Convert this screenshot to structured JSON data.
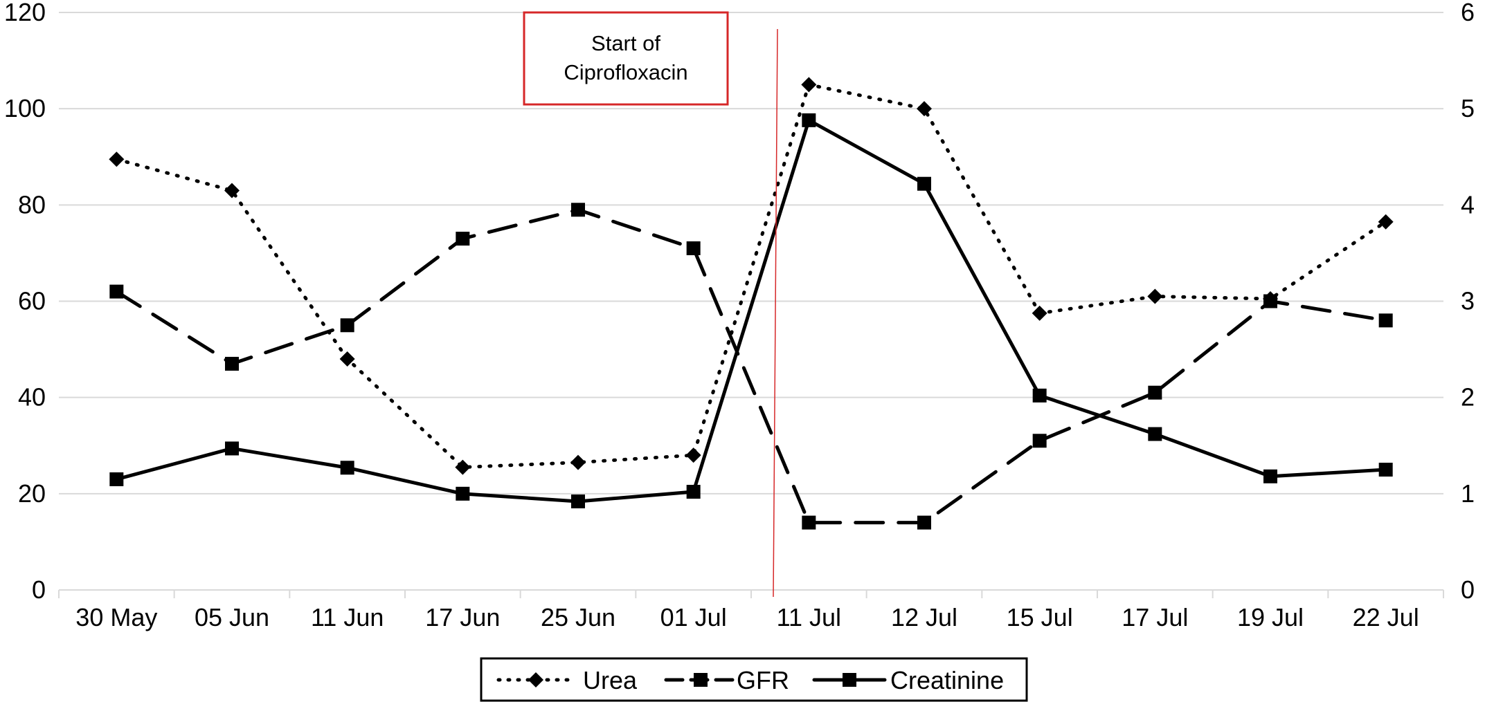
{
  "chart_data": {
    "type": "line",
    "title": "",
    "xlabel": "",
    "ylabel": "",
    "y2label": "",
    "categories": [
      "30 May",
      "05 Jun",
      "11 Jun",
      "17 Jun",
      "25 Jun",
      "01 Jul",
      "11 Jul",
      "12 Jul",
      "15 Jul",
      "17 Jul",
      "19 Jul",
      "22 Jul"
    ],
    "ylim": [
      0,
      120
    ],
    "yticks": [
      "0",
      "20",
      "40",
      "60",
      "80",
      "100",
      "120"
    ],
    "y2lim": [
      0,
      6
    ],
    "y2ticks": [
      "0",
      "1",
      "2",
      "3",
      "4",
      "5",
      "6"
    ],
    "grid": true,
    "legend_position": "bottom",
    "series": [
      {
        "name": "Urea",
        "axis": "left",
        "style": "dotted",
        "marker": "diamond",
        "color": "#000000",
        "values": [
          89.5,
          83,
          48,
          25.5,
          26.5,
          28,
          105,
          100,
          57.5,
          61,
          60.5,
          76.5
        ]
      },
      {
        "name": "GFR",
        "axis": "left",
        "style": "dashed",
        "marker": "square",
        "color": "#000000",
        "values": [
          62,
          47,
          55,
          73,
          79,
          71,
          14,
          14,
          31,
          41,
          60,
          56
        ]
      },
      {
        "name": "Creatinine",
        "axis": "right",
        "style": "solid",
        "marker": "square",
        "color": "#000000",
        "values": [
          1.15,
          1.47,
          1.27,
          1.0,
          0.92,
          1.02,
          4.88,
          4.22,
          2.02,
          1.62,
          1.18,
          1.25
        ]
      }
    ],
    "annotations": [
      {
        "text_line1": "Start of",
        "text_line2": "Ciprofloxacin",
        "position_between": [
          "01 Jul",
          "11 Jul"
        ],
        "color": "#d62728"
      }
    ]
  }
}
